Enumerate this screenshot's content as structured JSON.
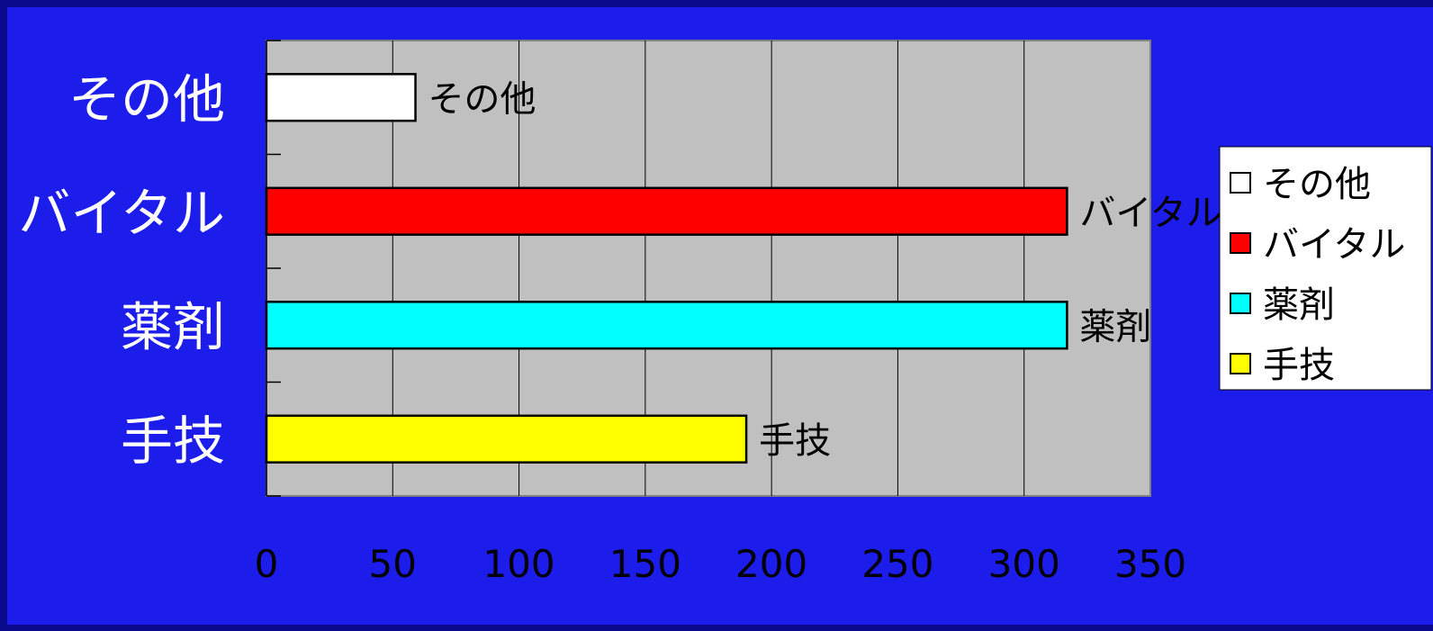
{
  "chart_data": {
    "type": "bar",
    "orientation": "horizontal",
    "categories": [
      "その他",
      "バイタル",
      "薬剤",
      "手技"
    ],
    "values": [
      59,
      317,
      317,
      190
    ],
    "colors": [
      "#ffffff",
      "#ff0000",
      "#00ffff",
      "#ffff00"
    ],
    "xlim": [
      0,
      350
    ],
    "xticks": [
      "0",
      "50",
      "100",
      "150",
      "200",
      "250",
      "300",
      "350"
    ],
    "grid": true,
    "legend_position": "right",
    "legend": [
      "その他",
      "バイタル",
      "薬剤",
      "手技"
    ],
    "plot_background": "#c0c0c0",
    "page_background": "#1c1ceb"
  }
}
